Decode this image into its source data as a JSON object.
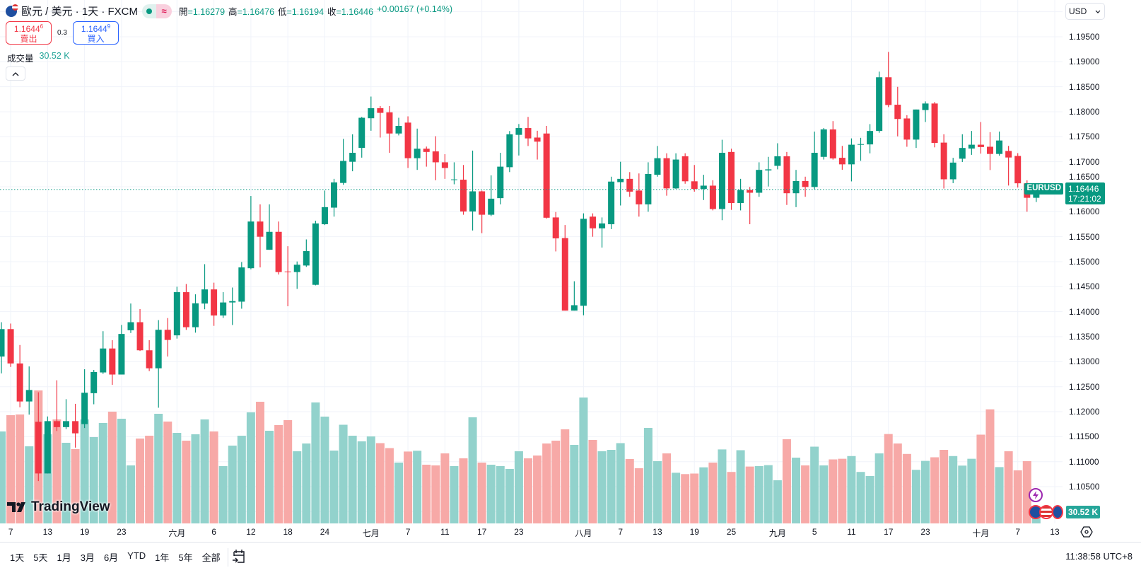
{
  "header": {
    "title": "歐元 / 美元 · 1天 · FXCM",
    "wave_badge": "≈",
    "ohlc": [
      {
        "k": "開",
        "v": "=1.16279"
      },
      {
        "k": "高",
        "v": "=1.16476"
      },
      {
        "k": "低",
        "v": "=1.16194"
      },
      {
        "k": "收",
        "v": "=1.16446"
      }
    ],
    "change": "+0.00167 (+0.14%)"
  },
  "trade": {
    "sell_main": "1.1644",
    "sell_pip": "6",
    "sell_label": "賣出",
    "spread": "0.3",
    "buy_main": "1.1644",
    "buy_pip": "9",
    "buy_label": "買入"
  },
  "volume_legend": {
    "label": "成交量",
    "value": "30.52 K"
  },
  "collapse_icon": "chevron-up",
  "logo_text": "TradingView",
  "axis": {
    "currency": "USD",
    "price_ticks": [
      "1.19500",
      "1.19000",
      "1.18500",
      "1.18000",
      "1.17500",
      "1.17000",
      "1.16500",
      "1.16000",
      "1.15500",
      "1.15000",
      "1.14500",
      "1.14000",
      "1.13500",
      "1.13000",
      "1.12500",
      "1.12000",
      "1.11500",
      "1.11000",
      "1.10500"
    ],
    "symbol_tag": "EURUSD",
    "current_price": "1.16446",
    "countdown": "17:21:02",
    "volume_tag": "30.52 K"
  },
  "toolbar": {
    "ranges": [
      "1天",
      "5天",
      "1月",
      "3月",
      "6月",
      "YTD",
      "1年",
      "5年",
      "全部"
    ],
    "clock": "11:38:58 UTC+8"
  },
  "colors": {
    "up": "#089981",
    "down": "#F23645",
    "vol_up": "#92D2CC",
    "vol_down": "#F7A9A7",
    "grid": "#F0F3FA"
  },
  "chart_data": {
    "type": "candlestick",
    "title": "歐元 / 美元 · 1天 · FXCM",
    "ylim": [
      1.1,
      1.2
    ],
    "current_price": 1.16446,
    "x_ticks": [
      {
        "label": "7",
        "index": 1
      },
      {
        "label": "13",
        "index": 5
      },
      {
        "label": "19",
        "index": 9
      },
      {
        "label": "23",
        "index": 13
      },
      {
        "label": "六月",
        "index": 19
      },
      {
        "label": "6",
        "index": 23
      },
      {
        "label": "12",
        "index": 27
      },
      {
        "label": "18",
        "index": 31
      },
      {
        "label": "24",
        "index": 35
      },
      {
        "label": "七月",
        "index": 40
      },
      {
        "label": "7",
        "index": 44
      },
      {
        "label": "11",
        "index": 48
      },
      {
        "label": "17",
        "index": 52
      },
      {
        "label": "23",
        "index": 56
      },
      {
        "label": "八月",
        "index": 63
      },
      {
        "label": "7",
        "index": 67
      },
      {
        "label": "13",
        "index": 71
      },
      {
        "label": "19",
        "index": 75
      },
      {
        "label": "25",
        "index": 79
      },
      {
        "label": "九月",
        "index": 84
      },
      {
        "label": "5",
        "index": 88
      },
      {
        "label": "11",
        "index": 92
      },
      {
        "label": "17",
        "index": 96
      },
      {
        "label": "23",
        "index": 100
      },
      {
        "label": "十月",
        "index": 106
      },
      {
        "label": "7",
        "index": 110
      },
      {
        "label": "13",
        "index": 114
      }
    ],
    "ohlc": [
      [
        1.13103,
        1.1379,
        1.12766,
        1.13652
      ],
      [
        1.13652,
        1.13763,
        1.12895,
        1.12965
      ],
      [
        1.12965,
        1.13334,
        1.12088,
        1.12204
      ],
      [
        1.12204,
        1.12905,
        1.11941,
        1.12434
      ],
      [
        1.11798,
        1.12388,
        1.10612,
        1.10764
      ],
      [
        1.10764,
        1.11904,
        1.10764,
        1.11811
      ],
      [
        1.11811,
        1.12628,
        1.11613,
        1.11691
      ],
      [
        1.11691,
        1.1225,
        1.1165,
        1.11811
      ],
      [
        1.11811,
        1.12157,
        1.11281,
        1.11567
      ],
      [
        1.11751,
        1.12849,
        1.11673,
        1.12379
      ],
      [
        1.1237,
        1.12835,
        1.12148,
        1.12794
      ],
      [
        1.12785,
        1.1361,
        1.12757,
        1.13264
      ],
      [
        1.13264,
        1.13431,
        1.12536,
        1.12743
      ],
      [
        1.12743,
        1.13735,
        1.12743,
        1.13555
      ],
      [
        1.13629,
        1.14164,
        1.13574,
        1.1379
      ],
      [
        1.1379,
        1.14053,
        1.13214,
        1.13228
      ],
      [
        1.13228,
        1.13431,
        1.12812,
        1.12868
      ],
      [
        1.12868,
        1.13832,
        1.12079,
        1.13638
      ],
      [
        1.13638,
        1.13873,
        1.13103,
        1.13435
      ],
      [
        1.13527,
        1.145,
        1.13462,
        1.14391
      ],
      [
        1.14391,
        1.14554,
        1.13636,
        1.1369
      ],
      [
        1.1369,
        1.14348,
        1.13581,
        1.14168
      ],
      [
        1.14163,
        1.14951,
        1.14049,
        1.14446
      ],
      [
        1.14446,
        1.14581,
        1.13717,
        1.13924
      ],
      [
        1.13924,
        1.14391,
        1.13875,
        1.14185
      ],
      [
        1.14185,
        1.14484,
        1.13734,
        1.14212
      ],
      [
        1.14201,
        1.14994,
        1.1406,
        1.14886
      ],
      [
        1.1487,
        1.16315,
        1.14848,
        1.15804
      ],
      [
        1.15804,
        1.16147,
        1.14886,
        1.155
      ],
      [
        1.15239,
        1.16147,
        1.15239,
        1.15598
      ],
      [
        1.15598,
        1.15804,
        1.14744,
        1.14793
      ],
      [
        1.14804,
        1.1531,
        1.14109,
        1.14793
      ],
      [
        1.14793,
        1.15005,
        1.14456,
        1.1494
      ],
      [
        1.14924,
        1.15446,
        1.14897,
        1.15212
      ],
      [
        1.14538,
        1.15821,
        1.14527,
        1.15766
      ],
      [
        1.1575,
        1.16424,
        1.15734,
        1.16092
      ],
      [
        1.16082,
        1.16658,
        1.15902,
        1.16587
      ],
      [
        1.16576,
        1.17457,
        1.16538,
        1.17016
      ],
      [
        1.17,
        1.17549,
        1.1681,
        1.17179
      ],
      [
        1.17277,
        1.17897,
        1.17082,
        1.1788
      ],
      [
        1.1787,
        1.18304,
        1.1762,
        1.18071
      ],
      [
        1.18071,
        1.18114,
        1.17484,
        1.17978
      ],
      [
        1.17989,
        1.18114,
        1.17179,
        1.17565
      ],
      [
        1.17565,
        1.1788,
        1.17527,
        1.17717
      ],
      [
        1.17783,
        1.17908,
        1.16875,
        1.17071
      ],
      [
        1.17071,
        1.17663,
        1.16837,
        1.17261
      ],
      [
        1.17261,
        1.17304,
        1.16902,
        1.17196
      ],
      [
        1.17207,
        1.17511,
        1.1663,
        1.16989
      ],
      [
        1.16989,
        1.17152,
        1.16658,
        1.16875
      ],
      [
        1.16636,
        1.16989,
        1.16549,
        1.16647
      ],
      [
        1.16641,
        1.16935,
        1.1594,
        1.16005
      ],
      [
        1.16005,
        1.17223,
        1.15625,
        1.16408
      ],
      [
        1.16408,
        1.16424,
        1.15571,
        1.1594
      ],
      [
        1.1594,
        1.16728,
        1.15913,
        1.16261
      ],
      [
        1.16272,
        1.17179,
        1.16147,
        1.16902
      ],
      [
        1.16891,
        1.17614,
        1.16793,
        1.17549
      ],
      [
        1.17538,
        1.17755,
        1.17125,
        1.17674
      ],
      [
        1.17674,
        1.17897,
        1.17315,
        1.17467
      ],
      [
        1.17484,
        1.1762,
        1.17044,
        1.17402
      ],
      [
        1.17565,
        1.17717,
        1.15864,
        1.1588
      ],
      [
        1.15886,
        1.15995,
        1.15206,
        1.15467
      ],
      [
        1.15473,
        1.15734,
        1.14022,
        1.14022
      ],
      [
        1.14022,
        1.14609,
        1.14022,
        1.1413
      ],
      [
        1.14119,
        1.15967,
        1.13929,
        1.15859
      ],
      [
        1.15902,
        1.15967,
        1.155,
        1.15668
      ],
      [
        1.15668,
        1.15886,
        1.15283,
        1.15766
      ],
      [
        1.1575,
        1.16701,
        1.15652,
        1.16603
      ],
      [
        1.16592,
        1.17,
        1.16125,
        1.16658
      ],
      [
        1.16658,
        1.16793,
        1.16299,
        1.16402
      ],
      [
        1.16424,
        1.16766,
        1.15902,
        1.16147
      ],
      [
        1.16147,
        1.16989,
        1.16,
        1.16755
      ],
      [
        1.16739,
        1.17315,
        1.16701,
        1.17071
      ],
      [
        1.17071,
        1.17169,
        1.16321,
        1.16467
      ],
      [
        1.16467,
        1.17169,
        1.16457,
        1.17044
      ],
      [
        1.17109,
        1.17169,
        1.1656,
        1.16609
      ],
      [
        1.16609,
        1.16935,
        1.16402,
        1.16457
      ],
      [
        1.16457,
        1.16739,
        1.16234,
        1.16522
      ],
      [
        1.16522,
        1.1663,
        1.16027,
        1.16054
      ],
      [
        1.16054,
        1.1744,
        1.15831,
        1.17179
      ],
      [
        1.17196,
        1.17261,
        1.16038,
        1.16174
      ],
      [
        1.16174,
        1.16658,
        1.16027,
        1.16435
      ],
      [
        1.16435,
        1.16495,
        1.1575,
        1.1638
      ],
      [
        1.1638,
        1.16989,
        1.16299,
        1.16837
      ],
      [
        1.16826,
        1.17098,
        1.16505,
        1.16848
      ],
      [
        1.16918,
        1.1737,
        1.16848,
        1.17109
      ],
      [
        1.17109,
        1.17196,
        1.16136,
        1.1637
      ],
      [
        1.1637,
        1.16837,
        1.16092,
        1.16614
      ],
      [
        1.16614,
        1.16701,
        1.16299,
        1.16495
      ],
      [
        1.16495,
        1.17603,
        1.16446,
        1.17179
      ],
      [
        1.17098,
        1.17674,
        1.17044,
        1.17647
      ],
      [
        1.17646,
        1.17813,
        1.17043,
        1.17067
      ],
      [
        1.17079,
        1.17317,
        1.1684,
        1.16948
      ],
      [
        1.16948,
        1.17467,
        1.16607,
        1.17341
      ],
      [
        1.17341,
        1.17479,
        1.17019,
        1.17353
      ],
      [
        1.17347,
        1.17753,
        1.17168,
        1.17616
      ],
      [
        1.17616,
        1.18803,
        1.1758,
        1.1869
      ],
      [
        1.1869,
        1.19197,
        1.18093,
        1.18135
      ],
      [
        1.18141,
        1.18499,
        1.17508,
        1.17855
      ],
      [
        1.17866,
        1.17932,
        1.173,
        1.17443
      ],
      [
        1.17443,
        1.18045,
        1.17276,
        1.18045
      ],
      [
        1.18034,
        1.18207,
        1.17795,
        1.18165
      ],
      [
        1.18165,
        1.18195,
        1.17288,
        1.17377
      ],
      [
        1.17383,
        1.1755,
        1.16464,
        1.16649
      ],
      [
        1.16649,
        1.17079,
        1.16572,
        1.16983
      ],
      [
        1.17061,
        1.1755,
        1.16995,
        1.17276
      ],
      [
        1.17264,
        1.17616,
        1.17138,
        1.17341
      ],
      [
        1.17341,
        1.17795,
        1.17162,
        1.17294
      ],
      [
        1.173,
        1.17592,
        1.16834,
        1.17156
      ],
      [
        1.17156,
        1.17604,
        1.17121,
        1.17425
      ],
      [
        1.17216,
        1.17317,
        1.16524,
        1.17085
      ],
      [
        1.17116,
        1.17172,
        1.16484,
        1.16569
      ],
      [
        1.16569,
        1.16627,
        1.16,
        1.16279
      ],
      [
        1.16279,
        1.16476,
        1.16194,
        1.16446
      ]
    ],
    "volume_k": [
      234,
      275.4,
      277.2,
      196.2,
      338.4,
      226.8,
      264.6,
      205.2,
      189,
      264.6,
      219.6,
      255.6,
      284.4,
      266.4,
      147.6,
      216,
      223.2,
      279,
      259.2,
      230.4,
      210.6,
      226.8,
      264.6,
      234,
      145.8,
      198,
      223.2,
      282.6,
      309.6,
      235.8,
      250.2,
      262.8,
      183.6,
      203.4,
      307.8,
      271.8,
      185.4,
      251.1,
      223.2,
      208.8,
      221.4,
      204.3,
      191.7,
      154.8,
      182.9,
      184.9,
      149.4,
      147.6,
      178.2,
      145.8,
      165.6,
      270,
      154.8,
      149.4,
      145.8,
      138.6,
      183.6,
      165.6,
      172.8,
      203.4,
      210.6,
      239.4,
      199.8,
      320.4,
      212.4,
      183.6,
      187.2,
      204.3,
      163.8,
      140.4,
      243,
      158.4,
      178.2,
      128.9,
      125.5,
      126.9,
      142.7,
      154.8,
      188.3,
      131,
      186.3,
      144.7,
      145.8,
      148.3,
      109.8,
      214.2,
      167.4,
      147.6,
      195.3,
      147.6,
      162.9,
      164.5,
      171.4,
      131,
      120.6,
      178.2,
      227.5,
      203.4,
      176.8,
      136.4,
      159.1,
      168.3,
      187.2,
      171.4,
      147.1,
      164.5,
      225.9,
      290.3,
      143.3,
      183.6,
      135,
      158.4,
      30.52
    ]
  }
}
